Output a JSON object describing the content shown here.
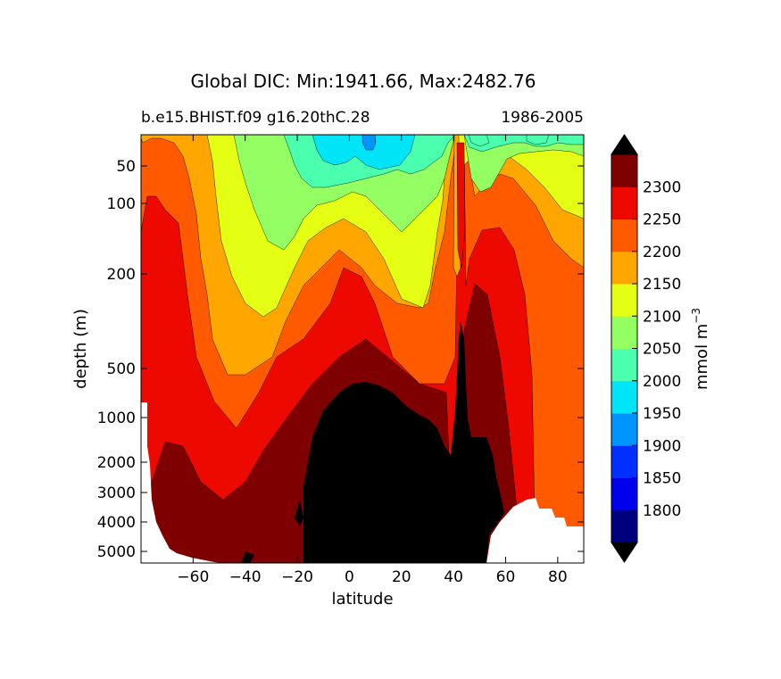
{
  "chart_data": {
    "type": "contour",
    "title": "Global DIC: Min:1941.66, Max:2482.76",
    "subtitle_left": "b.e15.BHIST.f09 g16.20thC.28",
    "subtitle_right": "1986-2005",
    "xlabel": "latitude",
    "ylabel": "depth (m)",
    "xlim": [
      -80,
      90
    ],
    "ylim": [
      5500,
      10
    ],
    "y_scale": "nonlinear (depth, increasing downward)",
    "x_ticks": [
      -60,
      -40,
      -20,
      0,
      20,
      40,
      60,
      80
    ],
    "x_tick_labels": [
      "−60",
      "−40",
      "−20",
      "0",
      "20",
      "40",
      "60",
      "80"
    ],
    "y_ticks": [
      50,
      100,
      200,
      500,
      1000,
      2000,
      3000,
      4000,
      5000
    ],
    "colorbar": {
      "label": "mmol m",
      "label_superscript": "−3",
      "levels": [
        1750,
        1800,
        1850,
        1900,
        1950,
        2000,
        2050,
        2100,
        2150,
        2200,
        2250,
        2300,
        2350
      ],
      "tick_values": [
        1800,
        1850,
        1900,
        1950,
        2000,
        2050,
        2100,
        2150,
        2200,
        2250,
        2300
      ],
      "colors": [
        "#00007f",
        "#0000ed",
        "#0030ff",
        "#0094ff",
        "#00e4f8",
        "#4affad",
        "#94ff63",
        "#e4ff13",
        "#ffa700",
        "#ff5a00",
        "#ed0800",
        "#7f0000"
      ],
      "extend": "both",
      "over_color": "#000000",
      "under_color": "#000000"
    },
    "missing_color": "#ffffff",
    "colors": {
      "axes": "#000000",
      "background": "#ffffff"
    }
  }
}
